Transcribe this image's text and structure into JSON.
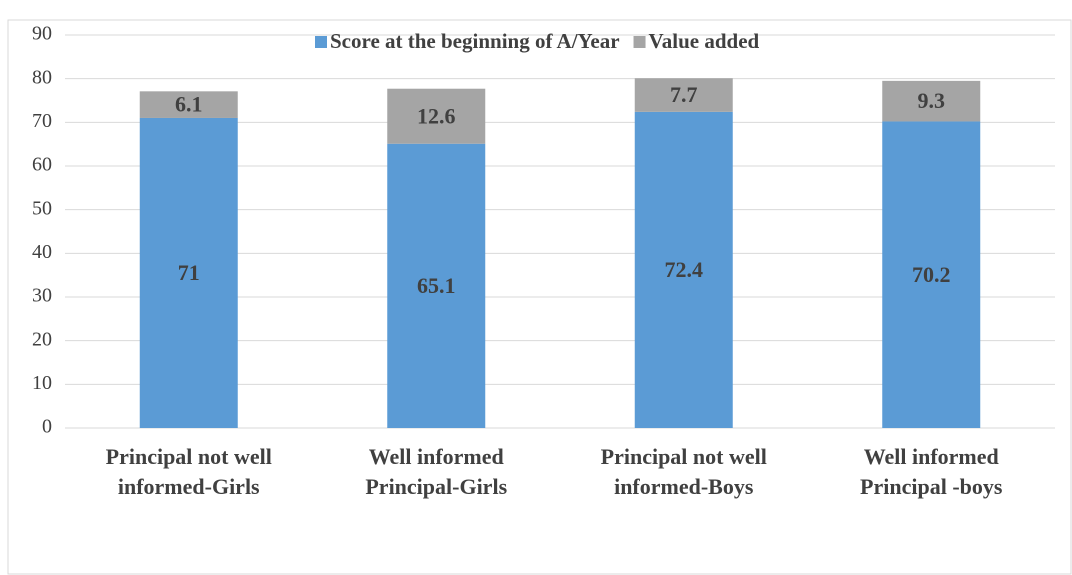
{
  "chart_data": {
    "type": "stacked_bar",
    "categories": [
      "Principal not well informed-Girls",
      "Well informed Principal-Girls",
      "Principal not well informed-Boys",
      "Well informed Principal -boys"
    ],
    "series": [
      {
        "name": "Score at the beginning of A/Year",
        "color": "#5b9bd5",
        "values": [
          71,
          65.1,
          72.4,
          70.2
        ]
      },
      {
        "name": "Value added",
        "color": "#a5a5a5",
        "values": [
          6.1,
          12.6,
          7.7,
          9.3
        ]
      }
    ],
    "ylim": [
      0,
      90
    ],
    "yticks": [
      0,
      10,
      20,
      30,
      40,
      50,
      60,
      70,
      80,
      90
    ],
    "grid": true,
    "legend": "top"
  }
}
